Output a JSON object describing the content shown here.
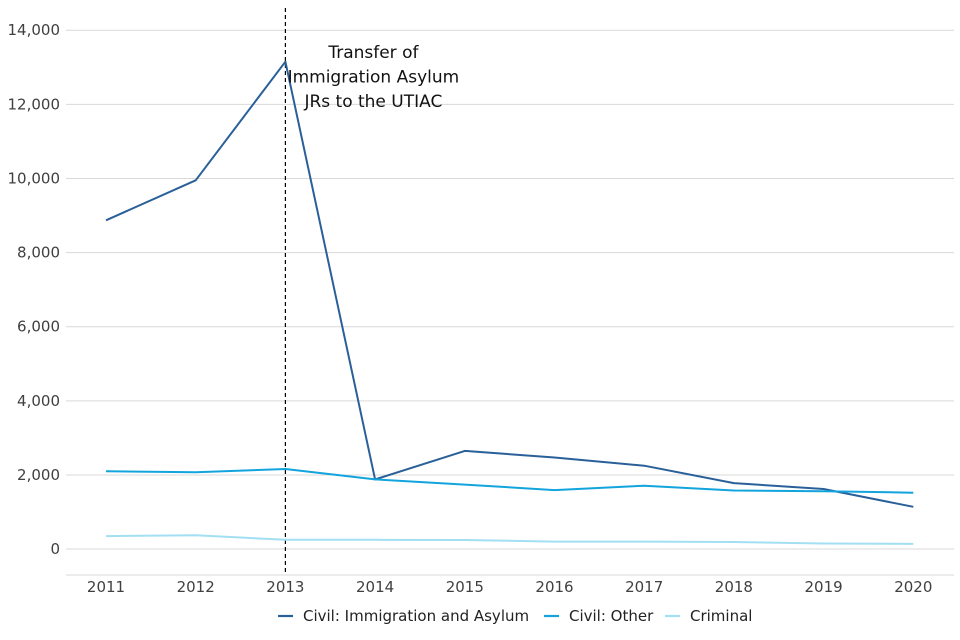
{
  "chart_data": {
    "type": "line",
    "x": [
      "2011",
      "2012",
      "2013",
      "2014",
      "2015",
      "2016",
      "2017",
      "2018",
      "2019",
      "2020"
    ],
    "series": [
      {
        "name": "Civil: Immigration and Asylum",
        "color": "#2a6099",
        "values": [
          8870,
          9950,
          13150,
          1880,
          2650,
          2470,
          2250,
          1780,
          1620,
          1140
        ]
      },
      {
        "name": "Civil: Other",
        "color": "#12a4dc",
        "values": [
          2100,
          2070,
          2160,
          1880,
          1740,
          1590,
          1710,
          1580,
          1560,
          1520
        ]
      },
      {
        "name": "Criminal",
        "color": "#a3dff2",
        "values": [
          350,
          375,
          250,
          250,
          245,
          200,
          200,
          190,
          150,
          140
        ]
      }
    ],
    "ylim": [
      -700,
      14600
    ],
    "y_ticks": [
      0,
      2000,
      4000,
      6000,
      8000,
      10000,
      12000,
      14000
    ],
    "y_tick_labels": [
      "0",
      "2,000",
      "4,000",
      "6,000",
      "8,000",
      "10,000",
      "12,000",
      "14,000"
    ],
    "grid": "horizontal",
    "legend_position": "bottom",
    "annotation": {
      "x": "2013",
      "lines": [
        "Transfer of",
        "Immigration Asylum",
        "JRs to the UTIAC"
      ]
    },
    "title": "",
    "xlabel": "",
    "ylabel": ""
  }
}
